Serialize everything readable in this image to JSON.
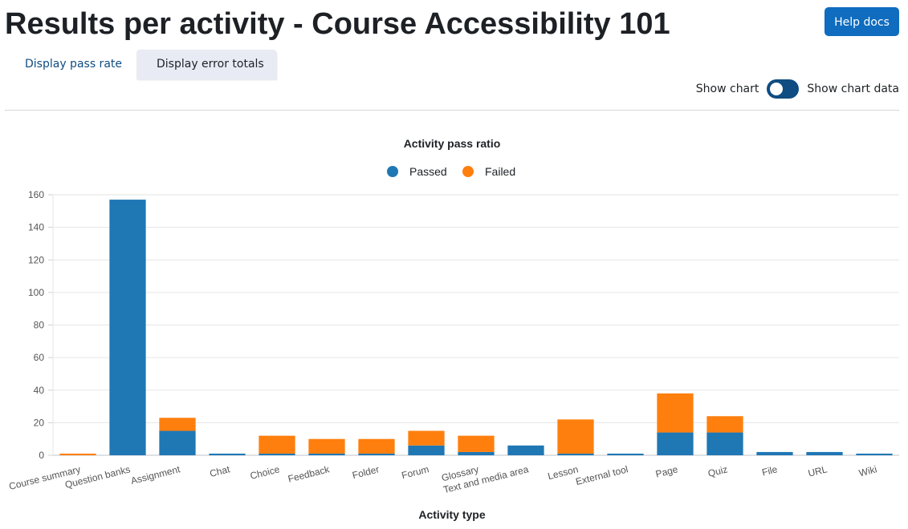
{
  "header": {
    "title": "Results per activity - Course Accessibility 101",
    "help_label": "Help docs"
  },
  "tabs": [
    {
      "label": "Display pass rate"
    },
    {
      "label": "Display error totals"
    }
  ],
  "toggle": {
    "left_label": "Show chart",
    "right_label": "Show chart data"
  },
  "colors": {
    "passed": "#1f77b4",
    "failed": "#ff7f0e",
    "accent": "#0f6cbf"
  },
  "chart_data": {
    "type": "bar",
    "stacked": true,
    "title": "Activity pass ratio",
    "xlabel": "Activity type",
    "ylabel": "",
    "ylim": [
      0,
      160
    ],
    "yticks": [
      0,
      20,
      40,
      60,
      80,
      100,
      120,
      140,
      160
    ],
    "grid": true,
    "legend_position": "top",
    "categories": [
      "Course summary",
      "Question banks",
      "Assignment",
      "Chat",
      "Choice",
      "Feedback",
      "Folder",
      "Forum",
      "Glossary",
      "Text and media area",
      "Lesson",
      "External tool",
      "Page",
      "Quiz",
      "File",
      "URL",
      "Wiki"
    ],
    "series": [
      {
        "name": "Passed",
        "color": "#1f77b4",
        "values": [
          0,
          157,
          15,
          1,
          1,
          1,
          1,
          6,
          2,
          6,
          1,
          1,
          14,
          14,
          2,
          2,
          1
        ]
      },
      {
        "name": "Failed",
        "color": "#ff7f0e",
        "values": [
          1,
          0,
          8,
          0,
          11,
          9,
          9,
          9,
          10,
          0,
          21,
          0,
          24,
          10,
          0,
          0,
          0
        ]
      }
    ]
  }
}
